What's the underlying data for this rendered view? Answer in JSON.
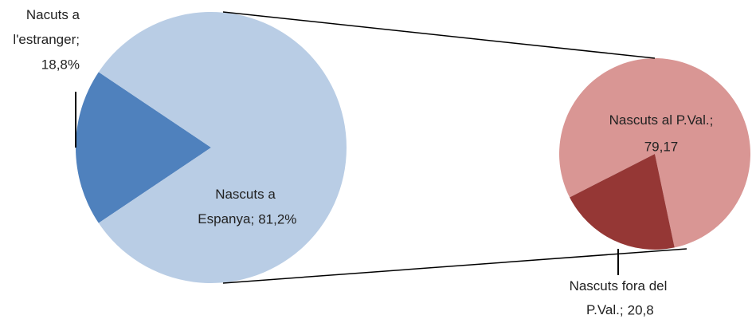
{
  "chart_data": [
    {
      "type": "pie",
      "categories": [
        "Nacuts a l'estranger",
        "Nascuts a Espanya"
      ],
      "values": [
        18.8,
        81.2
      ],
      "value_labels": [
        "18,8%",
        "81,2%"
      ],
      "separator": ";",
      "colors": [
        "#4f81bd",
        "#b9cde5"
      ]
    },
    {
      "type": "pie",
      "categories": [
        "Nascuts al P.Val.",
        "Nascuts fora del P.Val."
      ],
      "values": [
        79.17,
        20.8
      ],
      "value_labels": [
        "79,17",
        "20,8"
      ],
      "separator": ";",
      "colors": [
        "#d99694",
        "#953735"
      ]
    }
  ]
}
